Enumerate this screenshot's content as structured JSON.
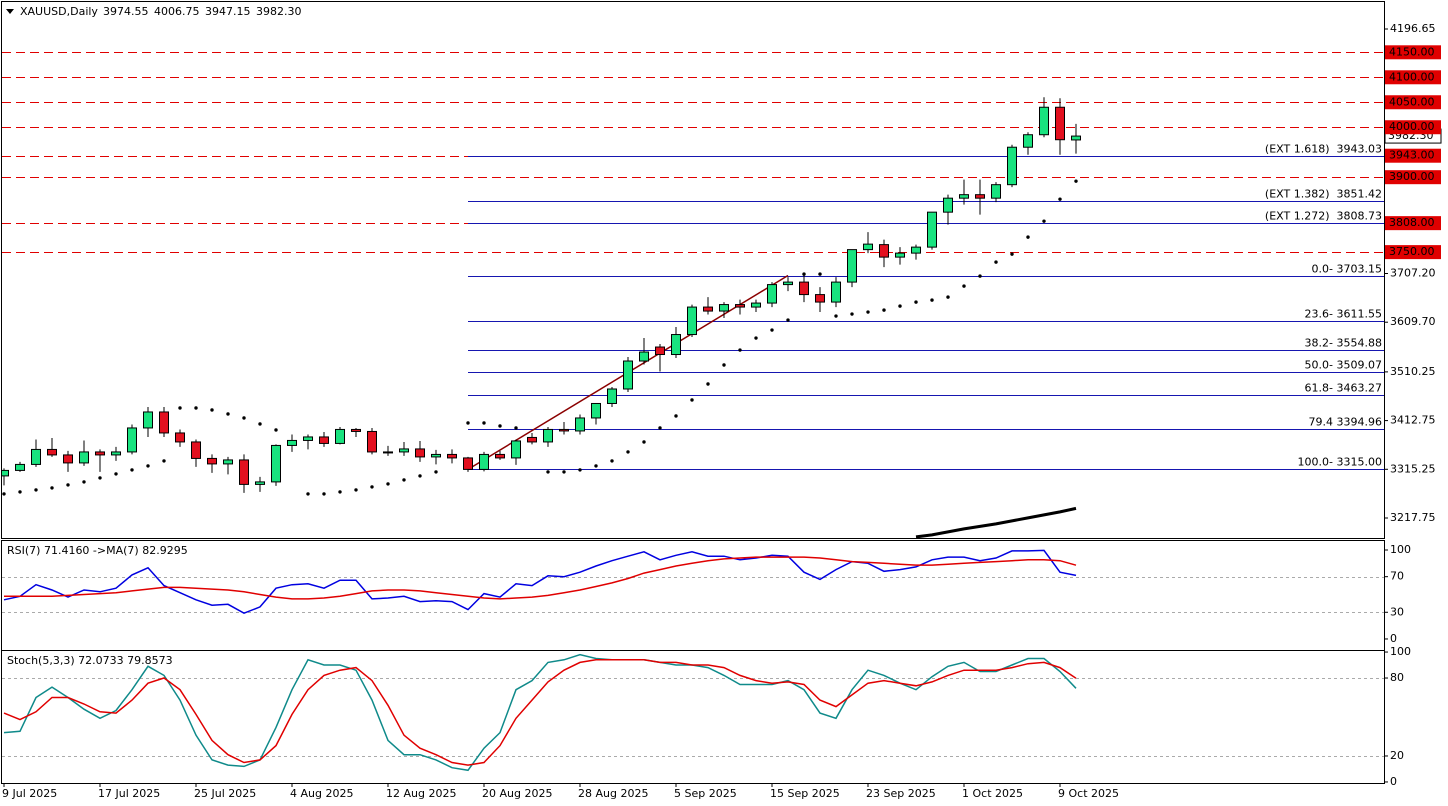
{
  "chart_data": [
    {
      "type": "candlestick",
      "title": "XAUUSD,Daily",
      "categories": [
        "9 Jul 2025",
        null,
        null,
        null,
        null,
        null,
        "17 Jul 2025",
        null,
        null,
        null,
        null,
        null,
        "25 Jul 2025",
        null,
        null,
        null,
        null,
        null,
        "4 Aug 2025",
        null,
        null,
        null,
        null,
        null,
        "12 Aug 2025",
        null,
        null,
        null,
        null,
        null,
        "20 Aug 2025",
        null,
        null,
        null,
        null,
        null,
        "28 Aug 2025",
        null,
        null,
        null,
        null,
        null,
        "5 Sep 2025",
        null,
        null,
        null,
        null,
        null,
        "15 Sep 2025",
        null,
        null,
        null,
        null,
        null,
        "23 Sep 2025",
        null,
        null,
        null,
        null,
        null,
        "1 Oct 2025",
        null,
        null,
        null,
        null,
        null,
        "9 Oct 2025",
        null
      ],
      "open": [
        3302,
        3313,
        3325,
        3355,
        3344,
        3328,
        3350,
        3344,
        3350,
        3398,
        3430,
        3388,
        3370,
        3337,
        3326,
        3334,
        3285,
        3290,
        3363,
        3373,
        3380,
        3367,
        3395,
        3391,
        3350,
        3350,
        3356,
        3340,
        3345,
        3338,
        3315,
        3345,
        3338,
        3379,
        3370,
        3395,
        3392,
        3418,
        3447,
        3476,
        3532,
        3560,
        3545,
        3585,
        3640,
        3632,
        3645,
        3640,
        3648,
        3685,
        3690,
        3665,
        3650,
        3690,
        3755,
        3765,
        3740,
        3748,
        3760,
        3830,
        3858,
        3865,
        3858,
        3885,
        3960,
        3985,
        4040,
        3974.55
      ],
      "high": [
        3317,
        3330,
        3375,
        3378,
        3352,
        3373,
        3355,
        3360,
        3405,
        3440,
        3440,
        3395,
        3375,
        3345,
        3340,
        3345,
        3300,
        3365,
        3385,
        3385,
        3390,
        3400,
        3398,
        3398,
        3362,
        3370,
        3372,
        3354,
        3355,
        3340,
        3350,
        3352,
        3375,
        3388,
        3400,
        3410,
        3425,
        3448,
        3480,
        3540,
        3578,
        3566,
        3600,
        3645,
        3660,
        3650,
        3655,
        3655,
        3690,
        3700,
        3705,
        3680,
        3700,
        3755,
        3790,
        3775,
        3760,
        3765,
        3830,
        3865,
        3895,
        3895,
        3890,
        3965,
        3990,
        4060,
        4058,
        4006.75
      ],
      "low": [
        3283,
        3310,
        3320,
        3340,
        3310,
        3322,
        3310,
        3332,
        3345,
        3380,
        3380,
        3360,
        3320,
        3308,
        3305,
        3268,
        3270,
        3282,
        3350,
        3355,
        3360,
        3365,
        3380,
        3345,
        3342,
        3342,
        3330,
        3325,
        3327,
        3310,
        3311,
        3334,
        3324,
        3365,
        3360,
        3385,
        3385,
        3405,
        3440,
        3470,
        3525,
        3511,
        3538,
        3580,
        3625,
        3618,
        3625,
        3630,
        3640,
        3672,
        3650,
        3630,
        3640,
        3680,
        3748,
        3720,
        3725,
        3735,
        3755,
        3805,
        3845,
        3825,
        3850,
        3880,
        3945,
        3980,
        3945,
        3947.15
      ],
      "close": [
        3313,
        3325,
        3355,
        3344,
        3328,
        3350,
        3344,
        3350,
        3398,
        3430,
        3388,
        3370,
        3337,
        3326,
        3334,
        3285,
        3290,
        3363,
        3373,
        3380,
        3367,
        3395,
        3391,
        3350,
        3350,
        3356,
        3340,
        3345,
        3338,
        3315,
        3345,
        3338,
        3372,
        3370,
        3395,
        3392,
        3418,
        3447,
        3476,
        3532,
        3550,
        3545,
        3585,
        3640,
        3632,
        3645,
        3640,
        3648,
        3685,
        3690,
        3665,
        3650,
        3690,
        3755,
        3766,
        3740,
        3748,
        3760,
        3830,
        3858,
        3865,
        3858,
        3885,
        3960,
        3985,
        4040,
        3975,
        3982.3
      ],
      "ohlc_labels": {
        "open": "3974.55",
        "high": "4006.75",
        "low": "3947.15",
        "close": "3982.30"
      },
      "up_color": "#19e37f",
      "down_color": "#e3101f",
      "ylim": [
        3177.7,
        4250.7
      ],
      "yticks": [
        {
          "value": 4196.65,
          "label": "4196.65"
        },
        {
          "value": 3707.2,
          "label": "3707.20"
        },
        {
          "value": 3609.7,
          "label": "3609.70"
        },
        3510.25,
        3412.75,
        3315.25,
        3217.75
      ],
      "levels": [
        {
          "value": 4150,
          "label": "4150.00"
        },
        {
          "value": 4100,
          "label": "4100.00"
        },
        {
          "value": 4050,
          "label": "4050.00"
        },
        {
          "value": 4000,
          "label": "4000.00"
        },
        {
          "value": 3943,
          "label": "3943.00"
        },
        {
          "value": 3900,
          "label": "3900.00"
        },
        {
          "value": 3808,
          "label": "3808.00"
        },
        {
          "value": 3750,
          "label": "3750.00"
        }
      ],
      "level_color": "#e00000",
      "fib_levels": [
        {
          "value": 3943.03,
          "label": "(EXT 1.618)  3943.03"
        },
        {
          "value": 3851.42,
          "label": "(EXT 1.382)  3851.42"
        },
        {
          "value": 3808.73,
          "label": "(EXT 1.272)  3808.73"
        },
        {
          "value": 3703.15,
          "label": "0.0- 3703.15"
        },
        {
          "value": 3611.55,
          "label": "23.6- 3611.55"
        },
        {
          "value": 3554.88,
          "label": "38.2- 3554.88"
        },
        {
          "value": 3509.07,
          "label": "50.0- 3509.07"
        },
        {
          "value": 3463.27,
          "label": "61.8- 3463.27"
        },
        {
          "value": 3394.96,
          "label": "79.4 3394.96"
        },
        {
          "value": 3315,
          "label": "100.0- 3315.00"
        }
      ],
      "fib_color": "#1616b0",
      "sar": {
        "color": "#000000",
        "values": [
          3266,
          3270,
          3274,
          3278,
          3284,
          3290,
          3298,
          3306,
          3314,
          3322,
          3332,
          3438,
          3438,
          3434,
          3426,
          3418,
          3406,
          3394,
          null,
          3266,
          3266,
          3270,
          3274,
          3280,
          3286,
          3294,
          3302,
          3310,
          null,
          3408,
          3408,
          3402,
          3398,
          null,
          3310,
          3310,
          3314,
          3322,
          3332,
          3350,
          3370,
          3398,
          3422,
          3454,
          3486,
          3524,
          3554,
          3578,
          3594,
          3614,
          3706,
          3706,
          3622,
          3626,
          3630,
          3634,
          3642,
          3650,
          3654,
          3660,
          3682,
          3702,
          3730,
          3746,
          3780,
          3812,
          3856,
          3892
        ]
      },
      "ma": {
        "color": "#000000",
        "values": [
          null,
          null,
          null,
          null,
          null,
          null,
          null,
          null,
          null,
          null,
          null,
          null,
          null,
          null,
          null,
          null,
          null,
          null,
          null,
          null,
          null,
          null,
          null,
          null,
          null,
          null,
          null,
          null,
          null,
          null,
          null,
          null,
          null,
          null,
          null,
          null,
          null,
          null,
          null,
          null,
          null,
          null,
          null,
          null,
          null,
          null,
          null,
          null,
          null,
          null,
          null,
          null,
          null,
          null,
          null,
          null,
          null,
          3180,
          3184,
          3190,
          3196,
          3201,
          3206,
          3212,
          3218,
          3224,
          3230,
          3237
        ]
      },
      "grid": false
    },
    {
      "type": "line",
      "title": "RSI(7) 71.4160 ->MA(7) 82.9295",
      "ylim": [
        -12.4,
        110.1
      ],
      "yticks": [
        100,
        70,
        30,
        0
      ],
      "levels": [
        70,
        30
      ],
      "series": [
        {
          "color": "#0000e0",
          "values": [
            44,
            48,
            61,
            55,
            47,
            55,
            53,
            57,
            72,
            80,
            60,
            52,
            44,
            38,
            39,
            29,
            36,
            57,
            61,
            62,
            57,
            66,
            66,
            45,
            46,
            48,
            42,
            43,
            42,
            33,
            51,
            47,
            62,
            60,
            71,
            70,
            75,
            82,
            88,
            93,
            98,
            89,
            94,
            98,
            93,
            93,
            89,
            91,
            94,
            93,
            75,
            67,
            78,
            87,
            85,
            76,
            78,
            81,
            89,
            92,
            92,
            88,
            91,
            99,
            99,
            99.5,
            75,
            71.416
          ]
        },
        {
          "color": "#e00000",
          "values": [
            48,
            48,
            48,
            48,
            49,
            50,
            51,
            52,
            54,
            56,
            58,
            58,
            57,
            56,
            55,
            53,
            50,
            47,
            45,
            45,
            46,
            48,
            51,
            54,
            55,
            55,
            54,
            52,
            50,
            48,
            46,
            45,
            46,
            47,
            49,
            52,
            55,
            59,
            63,
            68,
            74,
            78,
            82,
            85,
            88,
            90,
            91,
            92,
            92,
            92,
            92,
            91,
            89,
            87,
            86,
            85,
            84,
            83,
            83,
            84,
            85,
            86,
            87,
            88,
            89,
            89,
            88,
            82.9295
          ]
        }
      ]
    },
    {
      "type": "line",
      "title": "Stoch(5,3,3) 72.0733 79.8573",
      "ylim": [
        -0.8,
        100.8
      ],
      "yticks": [
        100,
        80,
        20,
        0
      ],
      "levels": [
        80,
        20
      ],
      "series": [
        {
          "color": "#0f8a8a",
          "values": [
            38,
            39,
            65,
            73,
            65,
            56,
            49,
            55,
            71,
            89,
            82,
            63,
            36,
            17,
            13,
            12,
            17,
            42,
            71,
            94,
            90,
            90,
            86,
            63,
            32,
            21,
            21,
            17,
            11,
            9,
            26,
            38,
            71,
            78,
            92,
            94,
            98,
            95,
            94,
            94,
            94,
            92,
            90,
            90,
            88,
            82,
            75,
            75,
            75,
            78,
            71,
            53,
            49,
            71,
            86,
            82,
            76,
            71,
            81,
            89,
            92,
            85,
            85,
            90,
            95,
            95,
            85,
            72.0733
          ]
        },
        {
          "color": "#e00000",
          "values": [
            53,
            48,
            54,
            65,
            65,
            60,
            54,
            53,
            63,
            76,
            80,
            71,
            52,
            32,
            21,
            15,
            17,
            28,
            52,
            71,
            82,
            86,
            88,
            78,
            59,
            36,
            26,
            21,
            15,
            13,
            15,
            28,
            49,
            63,
            77,
            86,
            92,
            94,
            94,
            94,
            94,
            92,
            92,
            90,
            90,
            88,
            82,
            78,
            76,
            77,
            75,
            63,
            58,
            67,
            76,
            78,
            76,
            74,
            77,
            82,
            86,
            86,
            86,
            88,
            91,
            92,
            88,
            79.8573
          ]
        }
      ]
    }
  ]
}
